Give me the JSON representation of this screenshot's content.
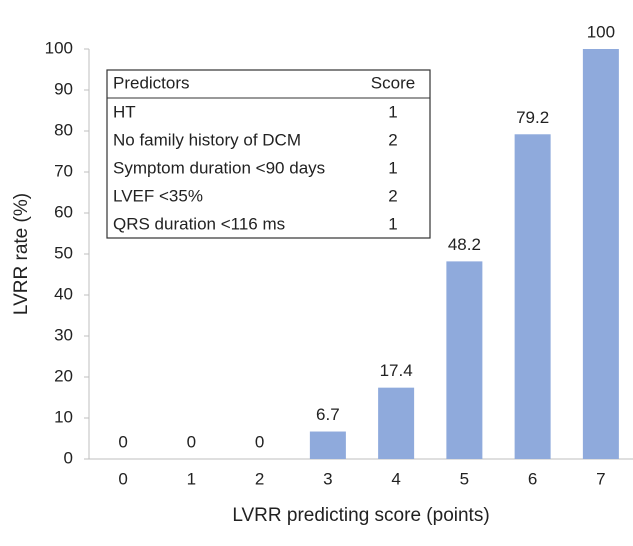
{
  "chart_data": {
    "type": "bar",
    "categories": [
      "0",
      "1",
      "2",
      "3",
      "4",
      "5",
      "6",
      "7"
    ],
    "values": [
      0,
      0,
      0,
      6.7,
      17.4,
      48.2,
      79.2,
      100
    ],
    "color": "#8faadc",
    "xlabel": "LVRR predicting score (points)",
    "ylabel": "LVRR rate (%)",
    "ylim": [
      0,
      100
    ],
    "yticks": [
      0,
      10,
      20,
      30,
      40,
      50,
      60,
      70,
      80,
      90,
      100
    ],
    "grid": false,
    "table": {
      "header": [
        "Predictors",
        "Score"
      ],
      "rows": [
        [
          "HT",
          1
        ],
        [
          "No family history of DCM",
          2
        ],
        [
          "Symptom duration <90 days",
          1
        ],
        [
          "LVEF <35%",
          2
        ],
        [
          "QRS duration <116 ms",
          1
        ]
      ]
    }
  }
}
